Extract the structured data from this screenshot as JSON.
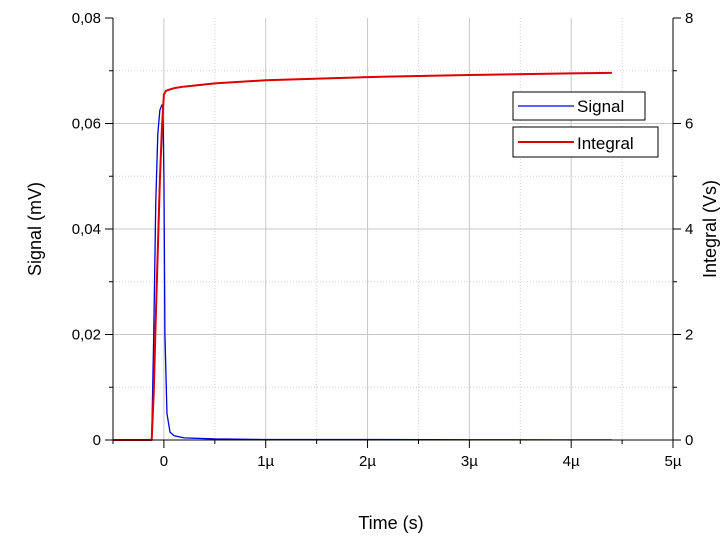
{
  "chart_data": {
    "type": "line",
    "title": "",
    "xlabel": "Time (s)",
    "ylabel": "Signal (mV)",
    "y2label": "Integral (Vs)",
    "xlim": [
      -5e-07,
      5e-06
    ],
    "ylim": [
      0,
      0.08
    ],
    "y2lim": [
      0,
      8
    ],
    "grid": true,
    "legend_position": "top-right",
    "x_ticks": [
      0,
      1e-06,
      2e-06,
      3e-06,
      4e-06,
      5e-06
    ],
    "x_tick_labels": [
      "0",
      "1µ",
      "2µ",
      "3µ",
      "4µ",
      "5µ"
    ],
    "y_ticks": [
      0,
      0.02,
      0.04,
      0.06,
      0.08
    ],
    "y_tick_labels": [
      "0",
      "0,02",
      "0,04",
      "0,06",
      "0,08"
    ],
    "y2_ticks": [
      0,
      2,
      4,
      6,
      8
    ],
    "y2_tick_labels": [
      "0",
      "2",
      "4",
      "6",
      "8"
    ],
    "series": [
      {
        "name": "Signal",
        "axis": "left",
        "color": "#0000dd",
        "x": [
          -5e-07,
          -1.2e-07,
          -1e-07,
          -8e-08,
          -6e-08,
          -4e-08,
          -2e-08,
          -1e-08,
          0,
          1e-08,
          3e-08,
          6e-08,
          1e-07,
          2e-07,
          5e-07,
          1e-06,
          2e-06,
          3e-06,
          4e-06,
          4.4e-06
        ],
        "y": [
          0,
          0,
          0.02,
          0.045,
          0.058,
          0.0625,
          0.0635,
          0.0635,
          0.05,
          0.02,
          0.005,
          0.0015,
          0.0008,
          0.0004,
          0.0002,
          0.0001,
          0.0001,
          5e-05,
          3e-05,
          3e-05
        ]
      },
      {
        "name": "Integral",
        "axis": "right",
        "color": "#dd0000",
        "x": [
          -5e-07,
          -1.2e-07,
          -1e-07,
          -8e-08,
          -6e-08,
          -4e-08,
          -2e-08,
          0,
          2e-08,
          5e-08,
          1e-07,
          2e-07,
          5e-07,
          1e-06,
          2e-06,
          3e-06,
          4e-06,
          4.4e-06
        ],
        "y": [
          0,
          0,
          0.9,
          2.3,
          3.6,
          4.9,
          5.9,
          6.55,
          6.62,
          6.64,
          6.67,
          6.7,
          6.76,
          6.82,
          6.88,
          6.92,
          6.95,
          6.96
        ]
      }
    ]
  }
}
